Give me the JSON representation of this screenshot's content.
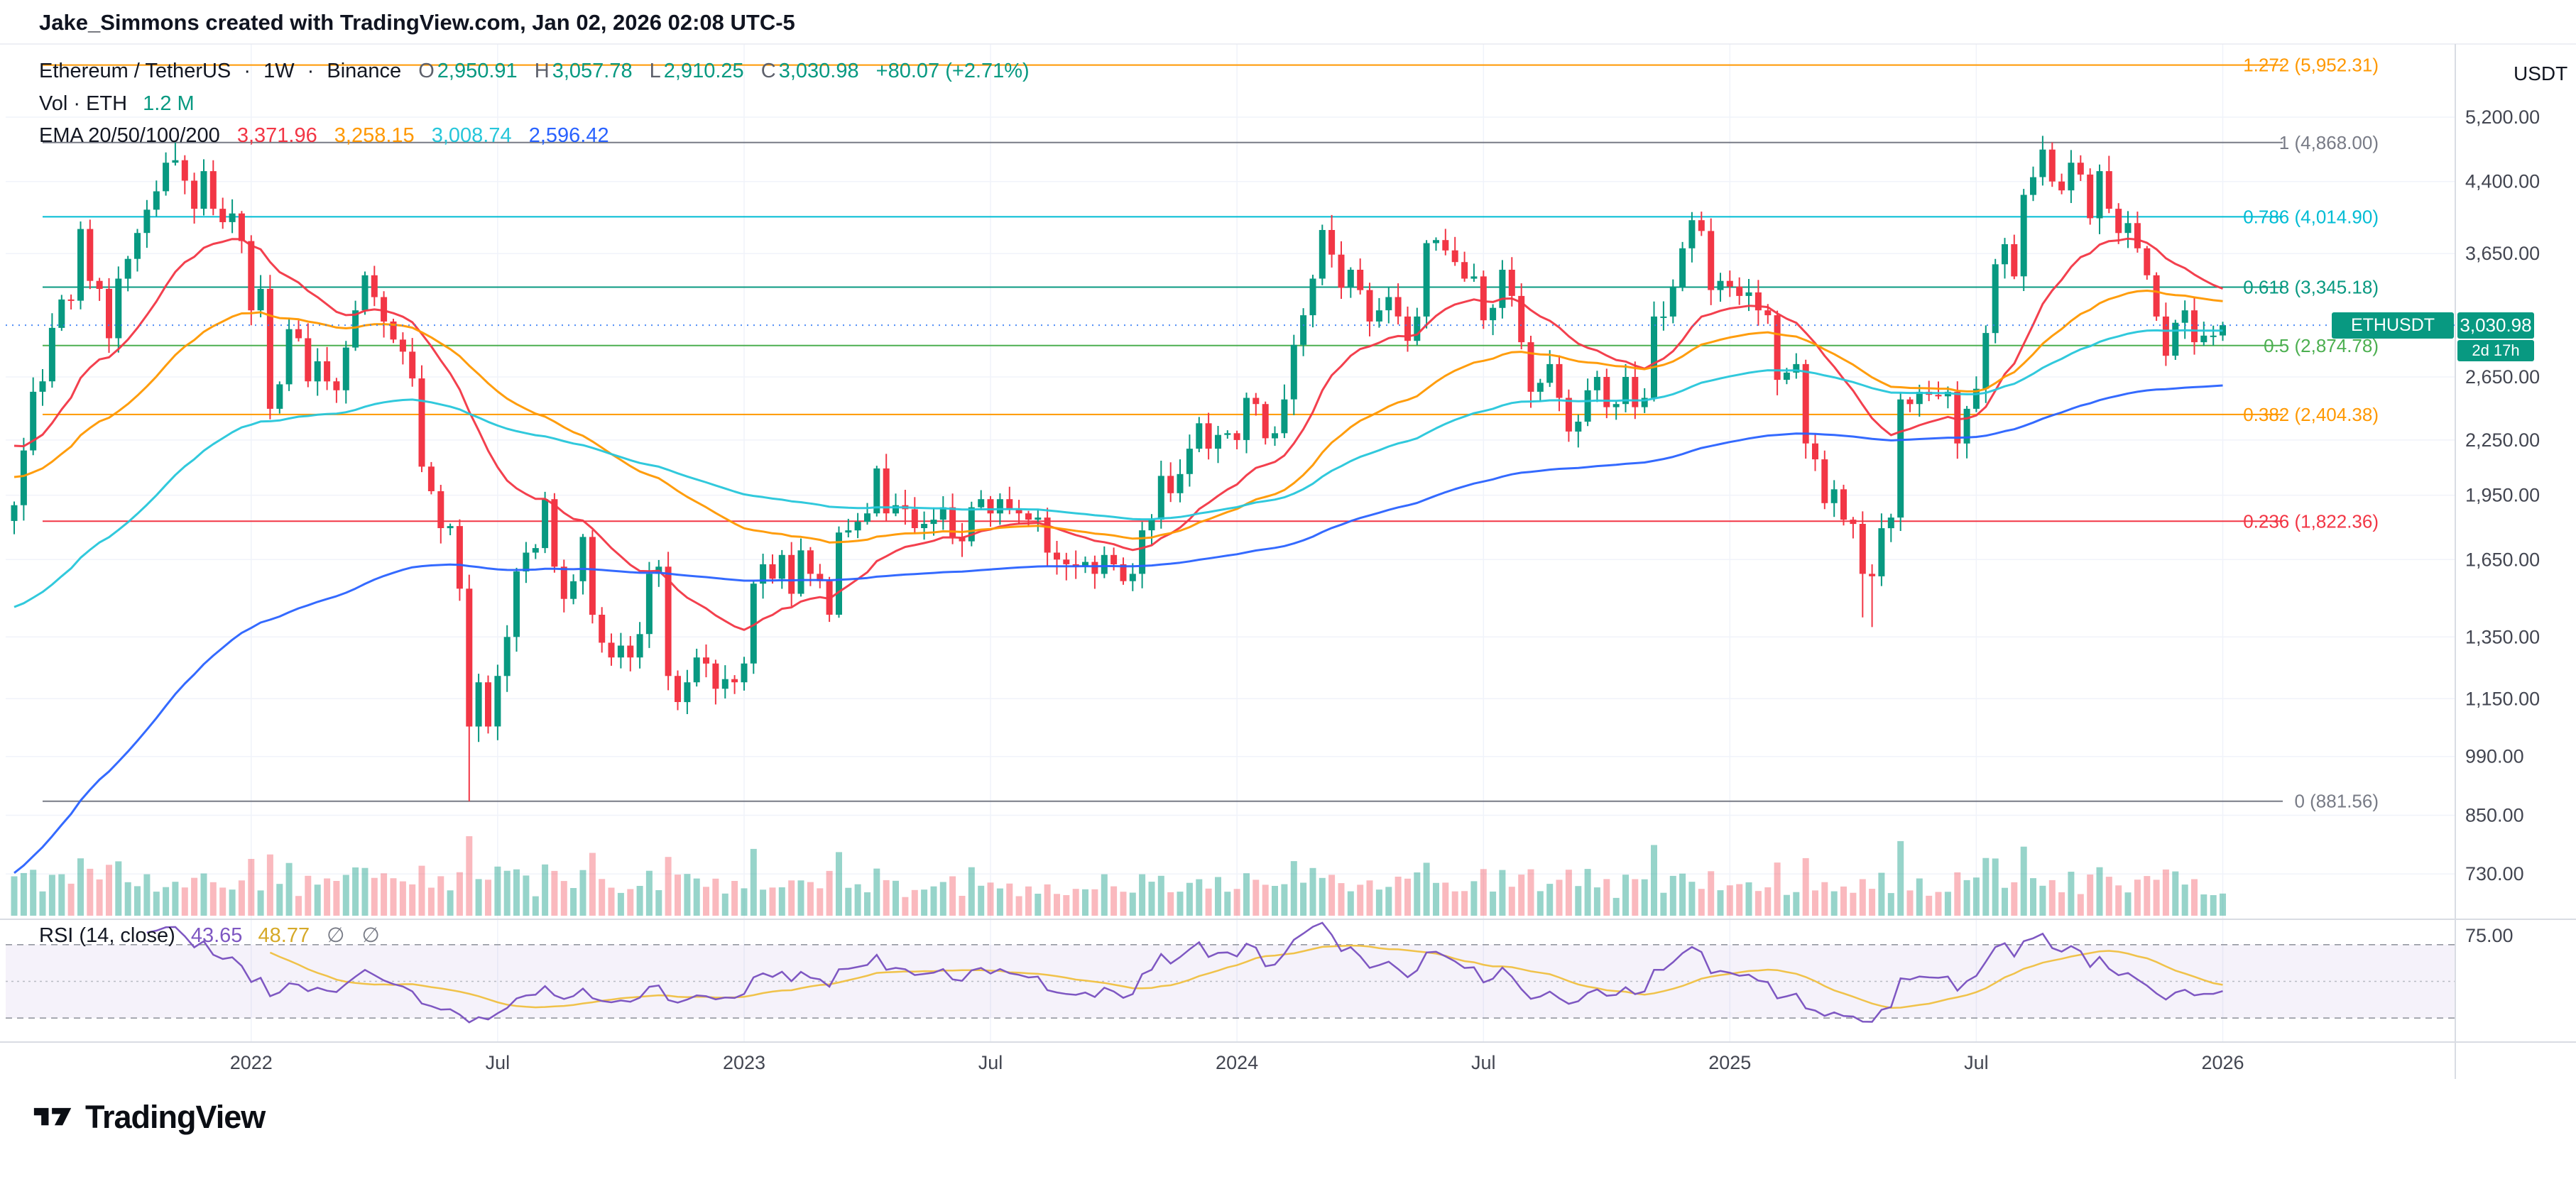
{
  "header": {
    "attribution": "Jake_Simmons created with TradingView.com, Jan 02, 2026 02:08 UTC-5",
    "symbol_title": "Ethereum / TetherUS",
    "separator": "·",
    "interval": "1W",
    "exchange": "Binance",
    "ohlc": [
      {
        "k": "O",
        "v": "2,950.91"
      },
      {
        "k": "H",
        "v": "3,057.78"
      },
      {
        "k": "L",
        "v": "2,910.25"
      },
      {
        "k": "C",
        "v": "3,030.98"
      }
    ],
    "change": "+80.07 (+2.71%)",
    "vol_label": "Vol · ETH",
    "vol_value": "1.2 M",
    "ema_label": "EMA 20/50/100/200",
    "ema_values": [
      "3,371.96",
      "3,258.15",
      "3,008.74",
      "2,596.42"
    ]
  },
  "rsi_header": {
    "label": "RSI (14, close)",
    "value": "43.65",
    "smoothed": "48.77",
    "placeholder1": "∅",
    "placeholder2": "∅"
  },
  "axis": {
    "currency": "USDT"
  },
  "price_badge": {
    "symbol": "ETHUSDT",
    "price": "3,030.98",
    "countdown": "2d 17h"
  },
  "footer": {
    "logo_text": "TradingView"
  },
  "chart_data": {
    "type": "candlestick",
    "symbol": "ETHUSDT",
    "exchange": "Binance",
    "interval": "1W",
    "scale": "log",
    "title": "Ethereum / TetherUS · 1W · Binance",
    "candle_colors": {
      "up": "#089981",
      "down": "#f23645"
    },
    "y_ticks": [
      {
        "label": "5,200.00",
        "price": 5200
      },
      {
        "label": "4,400.00",
        "price": 4400
      },
      {
        "label": "3,650.00",
        "price": 3650
      },
      {
        "label": "2,650.00",
        "price": 2650
      },
      {
        "label": "2,250.00",
        "price": 2250
      },
      {
        "label": "1,950.00",
        "price": 1950
      },
      {
        "label": "1,650.00",
        "price": 1650
      },
      {
        "label": "1,350.00",
        "price": 1350
      },
      {
        "label": "1,150.00",
        "price": 1150
      },
      {
        "label": "990.00",
        "price": 990
      },
      {
        "label": "850.00",
        "price": 850
      },
      {
        "label": "730.00",
        "price": 730
      }
    ],
    "x_labels": [
      {
        "label": "2022",
        "week": 25
      },
      {
        "label": "Jul",
        "week": 51
      },
      {
        "label": "2023",
        "week": 77
      },
      {
        "label": "Jul",
        "week": 103
      },
      {
        "label": "2024",
        "week": 129
      },
      {
        "label": "Jul",
        "week": 155
      },
      {
        "label": "2025",
        "week": 181
      },
      {
        "label": "Jul",
        "week": 207
      },
      {
        "label": "2026",
        "week": 233
      }
    ],
    "closes": [
      1900,
      2190,
      2550,
      2620,
      3010,
      3240,
      3230,
      3890,
      3400,
      3330,
      2930,
      3420,
      3600,
      3850,
      4090,
      4290,
      4620,
      4650,
      4410,
      4100,
      4520,
      4100,
      3960,
      4050,
      3770,
      3150,
      3330,
      2440,
      2600,
      3000,
      2930,
      2620,
      2760,
      2620,
      2560,
      2860,
      3150,
      3450,
      3260,
      3060,
      2920,
      2830,
      2640,
      2100,
      1970,
      1790,
      1800,
      1530,
      1070,
      1200,
      1070,
      1220,
      1350,
      1600,
      1680,
      1700,
      1930,
      1620,
      1490,
      1560,
      1750,
      1430,
      1330,
      1280,
      1320,
      1280,
      1360,
      1590,
      1620,
      1220,
      1140,
      1200,
      1280,
      1260,
      1180,
      1210,
      1200,
      1260,
      1550,
      1630,
      1570,
      1670,
      1510,
      1690,
      1590,
      1560,
      1430,
      1770,
      1780,
      1820,
      1860,
      2090,
      1860,
      1900,
      1880,
      1790,
      1810,
      1830,
      1890,
      1750,
      1730,
      1890,
      1930,
      1860,
      1930,
      1880,
      1860,
      1830,
      1840,
      1680,
      1650,
      1630,
      1620,
      1640,
      1590,
      1670,
      1630,
      1560,
      1590,
      1780,
      1830,
      2050,
      1960,
      2060,
      2200,
      2350,
      2200,
      2280,
      2290,
      2250,
      2510,
      2470,
      2260,
      2290,
      2500,
      2880,
      3110,
      3420,
      3880,
      3640,
      3340,
      3500,
      3320,
      3060,
      3150,
      3260,
      3100,
      2910,
      3100,
      3750,
      3780,
      3680,
      3570,
      3420,
      3440,
      3070,
      3170,
      3500,
      3270,
      2900,
      2550,
      2610,
      2740,
      2510,
      2300,
      2360,
      2560,
      2650,
      2450,
      2470,
      2650,
      2450,
      2510,
      3100,
      3100,
      3350,
      3700,
      3980,
      3870,
      3320,
      3400,
      3350,
      3270,
      3300,
      3150,
      3110,
      2630,
      2680,
      2740,
      2230,
      2140,
      1910,
      1980,
      1830,
      1810,
      1590,
      1580,
      1790,
      1840,
      2500,
      2470,
      2550,
      2530,
      2520,
      2550,
      2230,
      2440,
      2570,
      2970,
      3550,
      3740,
      3440,
      4250,
      4450,
      4780,
      4400,
      4300,
      4620,
      4480,
      4000,
      4520,
      4100,
      3850,
      3950,
      3700,
      3450,
      3100,
      2800,
      3050,
      3150,
      2900,
      2950,
      2950,
      3030.98
    ],
    "last_candle": {
      "open": 2950.91,
      "high": 3057.78,
      "low": 2910.25,
      "close": 3030.98,
      "change": "+80.07 (+2.71%)"
    },
    "wick_overrides": {
      "highs": {
        "17": 4868.0,
        "214": 4953.0
      },
      "lows": {
        "48": 881.56,
        "195": 1420.0,
        "196": 1385.0
      }
    },
    "fib_levels": [
      {
        "label": "1.272 (5,952.31)",
        "price": 5952.31,
        "color": "#ff9800"
      },
      {
        "label": "1 (4,868.00)",
        "price": 4868.0,
        "color": "#787b86"
      },
      {
        "label": "0.786 (4,014.90)",
        "price": 4014.9,
        "color": "#00bcd4"
      },
      {
        "label": "0.618 (3,345.18)",
        "price": 3345.18,
        "color": "#089981"
      },
      {
        "label": "0.5 (2,874.78)",
        "price": 2874.78,
        "color": "#4caf50"
      },
      {
        "label": "0.382 (2,404.38)",
        "price": 2404.38,
        "color": "#ff9800"
      },
      {
        "label": "0.236 (1,822.36)",
        "price": 1822.36,
        "color": "#f23645"
      },
      {
        "label": "0 (881.56)",
        "price": 881.56,
        "color": "#787b86"
      }
    ],
    "price_line": {
      "price": 3030.98,
      "color": "#3179f5"
    },
    "ema": {
      "periods": [
        20,
        50,
        100,
        200
      ],
      "current": [
        3371.96,
        3258.15,
        3008.74,
        2596.42
      ],
      "colors": [
        "#f23645",
        "#ff9800",
        "#26c6da",
        "#2962ff"
      ],
      "seeds": [
        2250,
        2050,
        1450,
        720
      ]
    },
    "rsi": {
      "period": 14,
      "current": 43.65,
      "smoothed_current": 48.77,
      "color": "#7e57c2",
      "smoothed_color": "#f0c24a",
      "bands": [
        70,
        50,
        30
      ],
      "tick": {
        "label": "75.00",
        "value": 75
      }
    },
    "volume": {
      "current_label": "1.2 M",
      "up_color": "rgba(8,153,129,0.42)",
      "down_color": "rgba(242,54,69,0.35)"
    }
  }
}
